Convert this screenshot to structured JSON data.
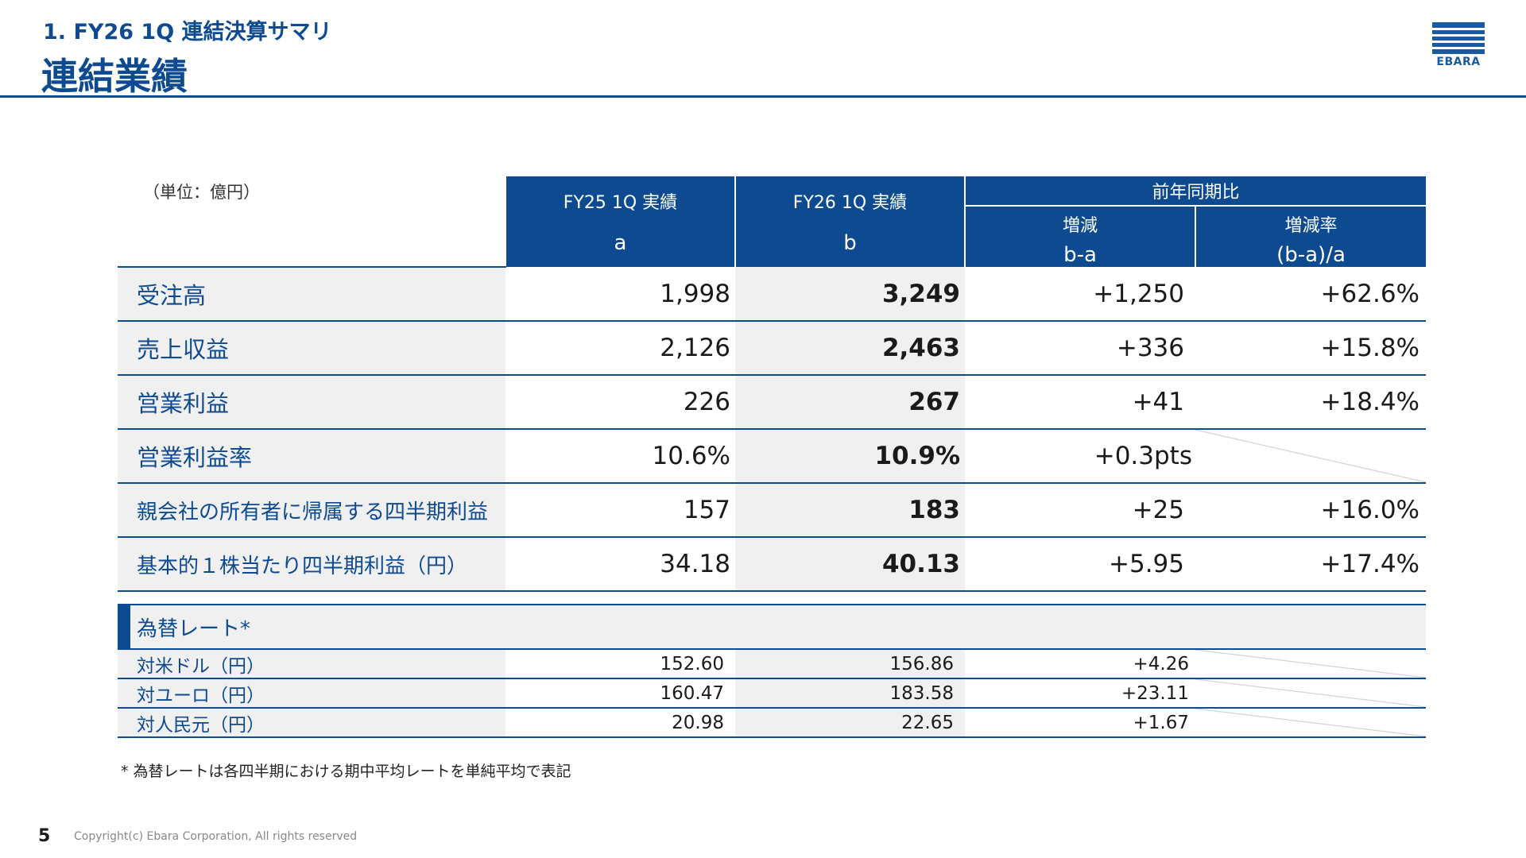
{
  "header": {
    "subtitle": "1. FY26 1Q 連結決算サマリ",
    "title": "連結業績",
    "logo_text": "EBARA"
  },
  "table": {
    "unit": "（単位：億円）",
    "columns": {
      "fy25": {
        "label": "FY25 1Q 実績",
        "sub": "a"
      },
      "fy26": {
        "label": "FY26 1Q 実績",
        "sub": "b"
      },
      "yoy_group": "前年同期比",
      "diff": {
        "label": "増減",
        "sub": "b-a"
      },
      "rate": {
        "label": "増減率",
        "sub": "(b-a)/a"
      }
    },
    "rows": [
      {
        "label": "受注高",
        "a": "1,998",
        "b": "3,249",
        "diff": "+1,250",
        "rate": "+62.6%"
      },
      {
        "label": "売上収益",
        "a": "2,126",
        "b": "2,463",
        "diff": "+336",
        "rate": "+15.8%"
      },
      {
        "label": "営業利益",
        "a": "226",
        "b": "267",
        "diff": "+41",
        "rate": "+18.4%"
      },
      {
        "label": "営業利益率",
        "a": "10.6%",
        "b": "10.9%",
        "diff": "+0.3pts",
        "rate": ""
      },
      {
        "label": "親会社の所有者に帰属する四半期利益",
        "a": "157",
        "b": "183",
        "diff": "+25",
        "rate": "+16.0%"
      },
      {
        "label": "基本的１株当たり四半期利益（円）",
        "a": "34.18",
        "b": "40.13",
        "diff": "+5.95",
        "rate": "+17.4%"
      }
    ]
  },
  "fx": {
    "title": "為替レート*",
    "rows": [
      {
        "label": "対米ドル（円）",
        "a": "152.60",
        "b": "156.86",
        "diff": "+4.26"
      },
      {
        "label": "対ユーロ（円）",
        "a": "160.47",
        "b": "183.58",
        "diff": "+23.11"
      },
      {
        "label": "対人民元（円）",
        "a": "20.98",
        "b": "22.65",
        "diff": "+1.67"
      }
    ]
  },
  "footnote": "* 為替レートは各四半期における期中平均レートを単純平均で表記",
  "footer": {
    "page": "5",
    "copyright": "Copyright(c) Ebara Corporation, All rights reserved"
  },
  "colors": {
    "brand": "#0d4a8f",
    "row_shade": "#f0f0f0"
  }
}
